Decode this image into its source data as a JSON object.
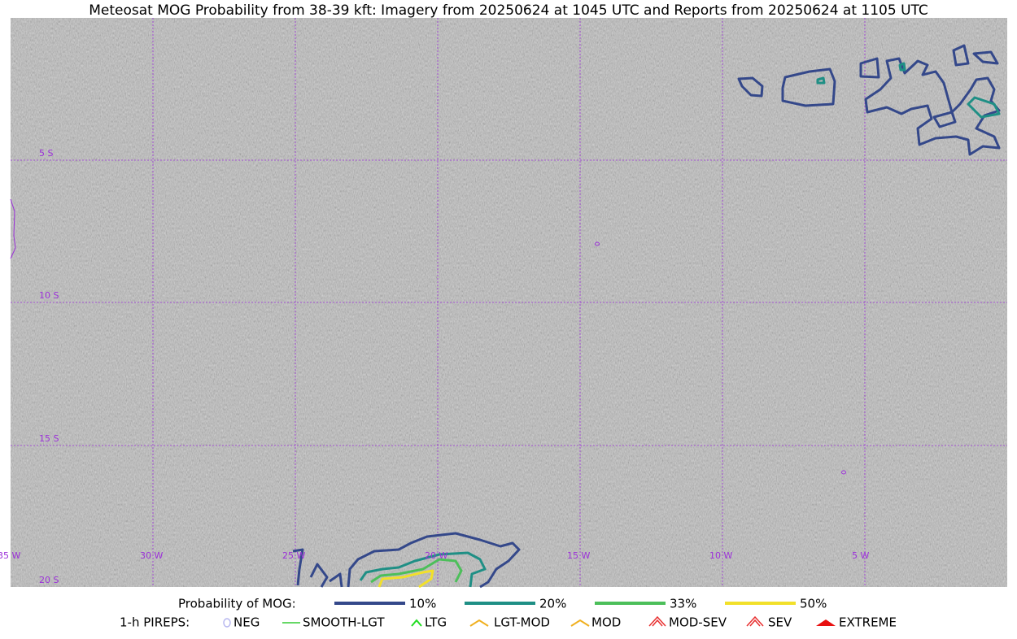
{
  "title": "Meteosat MOG Probability from 38-39 kft: Imagery from 20250624 at 1045 UTC and Reports from 20250624 at 1105 UTC",
  "map": {
    "lat_labels": [
      "5 S",
      "10 S",
      "15 S",
      "20 S"
    ],
    "lon_labels": [
      "35 W",
      "30 W",
      "25 W",
      "20 W",
      "15 W",
      "10 W",
      "5 W"
    ],
    "grid_color": "#9b30d9"
  },
  "legend": {
    "probability": {
      "label": "Probability of MOG:",
      "levels": [
        {
          "label": "10%",
          "color": "#34488a"
        },
        {
          "label": "20%",
          "color": "#1f8f85"
        },
        {
          "label": "33%",
          "color": "#4cbf5a"
        },
        {
          "label": "50%",
          "color": "#f2e02a"
        }
      ]
    },
    "pireps": {
      "label": "1-h PIREPS:",
      "items": [
        {
          "label": "NEG",
          "color": "#b8b8f0"
        },
        {
          "label": "SMOOTH-LGT",
          "color": "#33cc33"
        },
        {
          "label": "LTG",
          "color": "#22dd22"
        },
        {
          "label": "LGT-MOD",
          "color": "#f0b020"
        },
        {
          "label": "MOD",
          "color": "#f0b020"
        },
        {
          "label": "MOD-SEV",
          "color": "#e83030"
        },
        {
          "label": "SEV",
          "color": "#e83030"
        },
        {
          "label": "EXTREME",
          "color": "#e81010"
        }
      ]
    }
  }
}
